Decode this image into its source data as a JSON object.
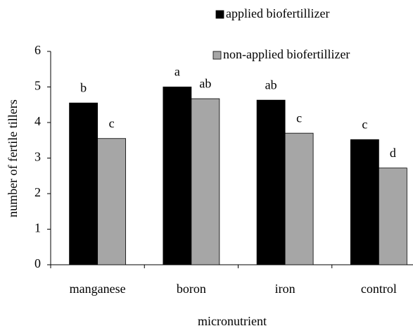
{
  "chart_data": {
    "type": "bar",
    "x_label": "micronutrient",
    "y_label": "number of fertile tillers",
    "categories": [
      "manganese",
      "boron",
      "iron",
      "control"
    ],
    "series": [
      {
        "name": "applied biofertillizer",
        "color": "#000000",
        "values": [
          4.55,
          5.0,
          4.63,
          3.52
        ],
        "annotations": [
          "b",
          "a",
          "ab",
          "c"
        ]
      },
      {
        "name": "non-applied biofertillizer",
        "color": "#a6a6a6",
        "values": [
          3.55,
          4.67,
          3.7,
          2.72
        ],
        "annotations": [
          "c",
          "ab",
          "c",
          "d"
        ]
      }
    ],
    "ylim": [
      0,
      6
    ],
    "yticks": [
      0,
      1,
      2,
      3,
      4,
      5,
      6
    ],
    "grid": false
  }
}
